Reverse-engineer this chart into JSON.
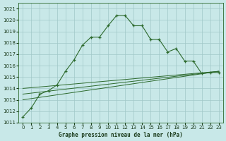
{
  "title": "Graphe pression niveau de la mer (hPa)",
  "bg_color": "#c8e8e8",
  "grid_color": "#a0c8c8",
  "line_color": "#2d6a2d",
  "xlim": [
    -0.5,
    23.5
  ],
  "ylim": [
    1011,
    1021.5
  ],
  "yticks": [
    1011,
    1012,
    1013,
    1014,
    1015,
    1016,
    1017,
    1018,
    1019,
    1020,
    1021
  ],
  "xticks": [
    0,
    1,
    2,
    3,
    4,
    5,
    6,
    7,
    8,
    9,
    10,
    11,
    12,
    13,
    14,
    15,
    16,
    17,
    18,
    19,
    20,
    21,
    22,
    23
  ],
  "series0_x": [
    0,
    1,
    2,
    3,
    4,
    5,
    6,
    7,
    8,
    9,
    10,
    11,
    12,
    13,
    14,
    15,
    16,
    17,
    18,
    19,
    20,
    21,
    22,
    23
  ],
  "series0_y": [
    1011.5,
    1012.3,
    1013.5,
    1013.8,
    1014.3,
    1015.5,
    1016.5,
    1017.8,
    1018.5,
    1018.5,
    1019.5,
    1020.4,
    1020.4,
    1019.5,
    1019.5,
    1018.3,
    1018.3,
    1017.2,
    1017.5,
    1016.4,
    1016.4,
    1015.3,
    1015.4,
    1015.4
  ],
  "trend1_x": [
    0,
    23
  ],
  "trend1_y": [
    1013.0,
    1015.5
  ],
  "trend2_x": [
    0,
    23
  ],
  "trend2_y": [
    1013.5,
    1015.5
  ],
  "trend3_x": [
    0,
    23
  ],
  "trend3_y": [
    1014.0,
    1015.5
  ]
}
